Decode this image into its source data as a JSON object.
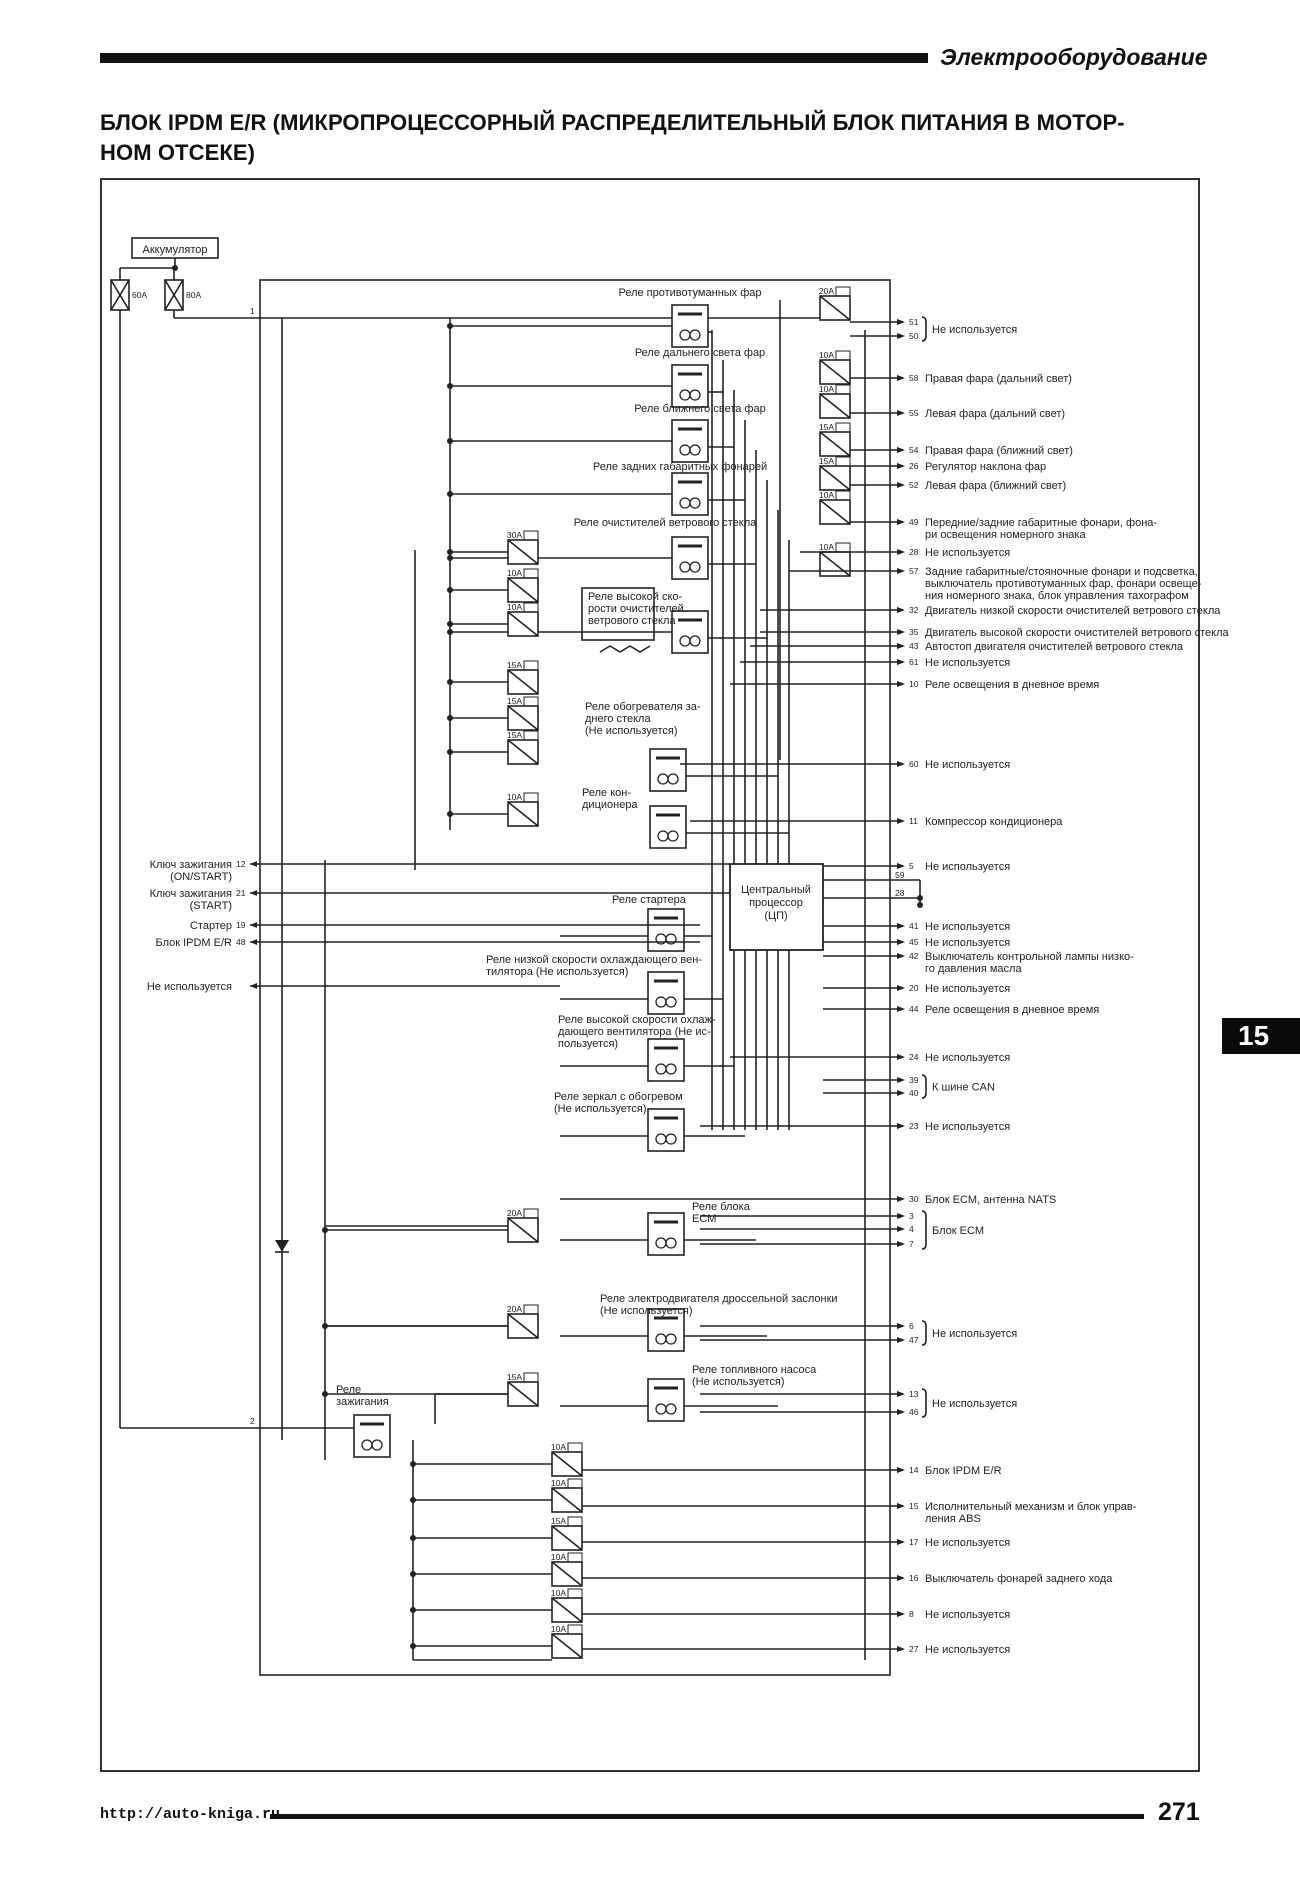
{
  "header": {
    "section": "Электрооборудование",
    "title_lines": [
      "БЛОК IPDM E/R (МИКРОПРОЦЕССОРНЫЙ РАСПРЕДЕЛИТЕЛЬНЫЙ БЛОК ПИТАНИЯ В МОТОР-",
      "НОМ ОТСЕКЕ)"
    ]
  },
  "side_tab": "15",
  "footer": {
    "url": "http://auto-kniga.ru",
    "page": "271"
  },
  "diagram": {
    "battery": "Аккумулятор",
    "battery_fuses": [
      "60A",
      "80A"
    ],
    "terminal_pins": [
      "1",
      "2"
    ],
    "cpu": [
      "Центральный",
      "процессор",
      "(ЦП)"
    ],
    "inputs": [
      {
        "pin": "12",
        "label": [
          "Ключ зажигания",
          "(ON/START)"
        ]
      },
      {
        "pin": "21",
        "label": [
          "Ключ зажигания",
          "(START)"
        ]
      },
      {
        "pin": "19",
        "label": [
          "Стартер"
        ]
      },
      {
        "pin": "48",
        "label": [
          "Блок IPDM E/R"
        ]
      },
      {
        "pin": "",
        "label": [
          "Не используется"
        ]
      }
    ],
    "internal_pins": [
      "59",
      "28"
    ],
    "relays": [
      [
        "Реле противотуманных фар"
      ],
      [
        "Реле дальнего света фар"
      ],
      [
        "Реле ближнего света фар"
      ],
      [
        "Реле задних габаритных фонарей"
      ],
      [
        "Реле очистителей ветрового стекла"
      ],
      [
        "Реле высокой ско-",
        "рости очистителей",
        "ветрового стекла"
      ],
      [
        "Реле обогревателя за-",
        "днего стекла",
        "(Не используется)"
      ],
      [
        "Реле кон-",
        "диционера"
      ],
      [
        "Реле стартера"
      ],
      [
        "Реле низкой скорости охлаждающего вен-",
        "тилятора (Не используется)"
      ],
      [
        "Реле высокой скорости охлаж-",
        "дающего вентилятора (Не ис-",
        "пользуется)"
      ],
      [
        "Реле зеркал с обогревом",
        "(Не используется)"
      ],
      [
        "Реле блока",
        "ECM"
      ],
      [
        "Реле электродвигателя дроссельной заслонки",
        "(Не используется)"
      ],
      [
        "Реле топливного насоса",
        "(Не используется)"
      ],
      [
        "Реле",
        "зажигания"
      ]
    ],
    "fuses": [
      "20A",
      "10A",
      "10A",
      "15A",
      "15A",
      "10A",
      "10A",
      "30A",
      "10A",
      "10A",
      "15A",
      "15A",
      "15A",
      "10A",
      "20A",
      "20A",
      "15A",
      "10A",
      "10A",
      "15A",
      "10A",
      "10A",
      "10A"
    ],
    "outputs": [
      {
        "pins": [
          "51",
          "50"
        ],
        "label": [
          "Не используется"
        ]
      },
      {
        "pins": [
          "58"
        ],
        "label": [
          "Правая фара (дальний свет)"
        ]
      },
      {
        "pins": [
          "55"
        ],
        "label": [
          "Левая фара (дальний свет)"
        ]
      },
      {
        "pins": [
          "54"
        ],
        "label": [
          "Правая фара (ближний свет)"
        ]
      },
      {
        "pins": [
          "26"
        ],
        "label": [
          "Регулятор наклона фар"
        ]
      },
      {
        "pins": [
          "52"
        ],
        "label": [
          "Левая фара (ближний свет)"
        ]
      },
      {
        "pins": [
          "49"
        ],
        "label": [
          "Передние/задние габаритные фонари, фона-",
          "ри освещения номерного знака"
        ]
      },
      {
        "pins": [
          "28"
        ],
        "label": [
          "Не используется"
        ]
      },
      {
        "pins": [
          "57"
        ],
        "label": [
          "Задние габаритные/стояночные фонари и подсветка,",
          "выключатель противотуманных фар, фонари освеще-",
          "ния номерного знака, блок управления тахографом"
        ]
      },
      {
        "pins": [
          "32"
        ],
        "label": [
          "Двигатель низкой скорости очистителей ветрового стекла"
        ]
      },
      {
        "pins": [
          "35"
        ],
        "label": [
          "Двигатель высокой скорости очистителей ветрового стекла"
        ]
      },
      {
        "pins": [
          "43"
        ],
        "label": [
          "Автостоп двигателя очистителей ветрового стекла"
        ]
      },
      {
        "pins": [
          "61"
        ],
        "label": [
          "Не используется"
        ]
      },
      {
        "pins": [
          "10"
        ],
        "label": [
          "Реле освещения в дневное время"
        ]
      },
      {
        "pins": [
          "60"
        ],
        "label": [
          "Не используется"
        ]
      },
      {
        "pins": [
          "11"
        ],
        "label": [
          "Компрессор кондиционера"
        ]
      },
      {
        "pins": [
          "5"
        ],
        "label": [
          "Не используется"
        ]
      },
      {
        "pins": [
          "41"
        ],
        "label": [
          "Не используется"
        ]
      },
      {
        "pins": [
          "45"
        ],
        "label": [
          "Не используется"
        ]
      },
      {
        "pins": [
          "42"
        ],
        "label": [
          "Выключатель контрольной лампы низко-",
          "го давления масла"
        ]
      },
      {
        "pins": [
          "20"
        ],
        "label": [
          "Не используется"
        ]
      },
      {
        "pins": [
          "44"
        ],
        "label": [
          "Реле освещения в дневное время"
        ]
      },
      {
        "pins": [
          "24"
        ],
        "label": [
          "Не используется"
        ]
      },
      {
        "pins": [
          "39",
          "40"
        ],
        "label": [
          "К шине CAN"
        ]
      },
      {
        "pins": [
          "23"
        ],
        "label": [
          "Не используется"
        ]
      },
      {
        "pins": [
          "30"
        ],
        "label": [
          "Блок ECM, антенна NATS"
        ]
      },
      {
        "pins": [
          "3",
          "4",
          "7"
        ],
        "label": [
          "Блок ECM"
        ]
      },
      {
        "pins": [
          "6",
          "47"
        ],
        "label": [
          "Не используется"
        ]
      },
      {
        "pins": [
          "13",
          "46"
        ],
        "label": [
          "Не используется"
        ]
      },
      {
        "pins": [
          "14"
        ],
        "label": [
          "Блок IPDM E/R"
        ]
      },
      {
        "pins": [
          "15"
        ],
        "label": [
          "Исполнительный механизм и блок управ-",
          "ления ABS"
        ]
      },
      {
        "pins": [
          "17"
        ],
        "label": [
          "Не используется"
        ]
      },
      {
        "pins": [
          "16"
        ],
        "label": [
          "Выключатель фонарей заднего хода"
        ]
      },
      {
        "pins": [
          "8"
        ],
        "label": [
          "Не используется"
        ]
      },
      {
        "pins": [
          "27"
        ],
        "label": [
          "Не используется"
        ]
      }
    ]
  }
}
